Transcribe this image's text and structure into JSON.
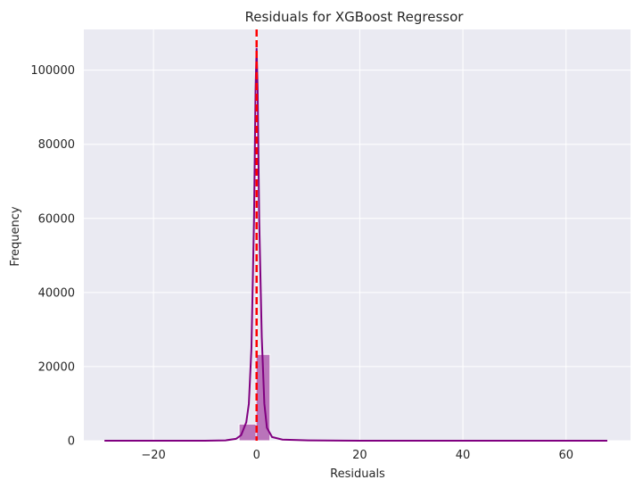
{
  "chart_data": {
    "type": "bar",
    "title": "Residuals for XGBoost Regressor",
    "xlabel": "Residuals",
    "ylabel": "Frequency",
    "xlim": [
      -33.5,
      72.5
    ],
    "ylim": [
      0,
      111000
    ],
    "xticks": [
      -20,
      0,
      20,
      40,
      60
    ],
    "xtick_labels": [
      "−20",
      "0",
      "20",
      "40",
      "60"
    ],
    "yticks": [
      0,
      20000,
      40000,
      60000,
      80000,
      100000
    ],
    "ytick_labels": [
      "0",
      "20000",
      "40000",
      "60000",
      "80000",
      "100000"
    ],
    "grid": true,
    "bins": [
      {
        "x0": -3.4,
        "x1": -0.1,
        "count": 4500
      },
      {
        "x0": -0.1,
        "x1": 2.6,
        "count": 23300
      }
    ],
    "kde": [
      [
        -29.5,
        0
      ],
      [
        -10,
        0
      ],
      [
        -6,
        100
      ],
      [
        -4,
        500
      ],
      [
        -3,
        1500
      ],
      [
        -2,
        5000
      ],
      [
        -1.5,
        10000
      ],
      [
        -1,
        25000
      ],
      [
        -0.5,
        60000
      ],
      [
        -0.2,
        95000
      ],
      [
        0,
        106000
      ],
      [
        0.2,
        95000
      ],
      [
        0.5,
        60000
      ],
      [
        1,
        28000
      ],
      [
        1.5,
        10000
      ],
      [
        2,
        3500
      ],
      [
        3,
        1000
      ],
      [
        5,
        300
      ],
      [
        10,
        100
      ],
      [
        20,
        0
      ],
      [
        68,
        0
      ]
    ],
    "mean_line_x": 0,
    "colors": {
      "bar": "#b05fb0",
      "bar_edge": "#ffffff",
      "kde": "#800080",
      "mean_line": "#ff0000",
      "plot_bg": "#eaeaf2",
      "grid": "#ffffff"
    }
  }
}
